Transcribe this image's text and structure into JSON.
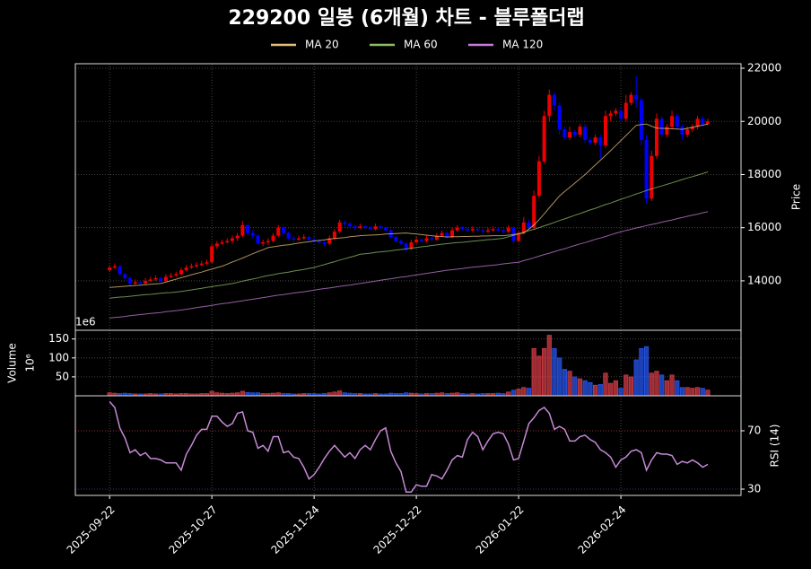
{
  "chart_data": [
    {
      "type": "candlestick",
      "title": "229200 일봉 (6개월) 차트 - 블루폴더랩",
      "ylabel": "Price",
      "up_color": "#ee0000",
      "down_color": "#0000ff",
      "grid": true,
      "xlim": [
        -6.7,
        123.5
      ],
      "ylim": [
        12140,
        22170
      ],
      "yticks": [
        14000,
        16000,
        18000,
        20000,
        22000
      ],
      "open": [
        14400,
        14500,
        14550,
        14250,
        14100,
        13900,
        13950,
        13900,
        14000,
        14050,
        14100,
        14000,
        14150,
        14200,
        14250,
        14400,
        14500,
        14550,
        14600,
        14650,
        14700,
        15300,
        15400,
        15450,
        15500,
        15600,
        15700,
        16100,
        15800,
        15700,
        15400,
        15450,
        15500,
        15700,
        16000,
        15800,
        15600,
        15550,
        15600,
        15650,
        15550,
        15500,
        15450,
        15400,
        15600,
        15850,
        16200,
        16150,
        16050,
        16000,
        16050,
        16000,
        15950,
        16050,
        16000,
        15900,
        15650,
        15500,
        15400,
        15200,
        15450,
        15550,
        15500,
        15600,
        15550,
        15700,
        15800,
        15650,
        15900,
        16000,
        15950,
        15900,
        15950,
        15900,
        15850,
        15900,
        15950,
        15900,
        15850,
        16000,
        15500,
        15800,
        16200,
        16000,
        17200,
        18500,
        20200,
        21000,
        20600,
        19700,
        19400,
        19600,
        19500,
        19800,
        19300,
        19200,
        19400,
        19100,
        20200,
        20300,
        20400,
        20100,
        20700,
        21000,
        20800,
        19300,
        17100,
        18700,
        20100,
        19500,
        19800,
        20200,
        19800,
        19500,
        19700,
        19800,
        20100,
        19900
      ],
      "high": [
        14600,
        14650,
        14600,
        14300,
        14150,
        14050,
        14000,
        14100,
        14150,
        14200,
        14150,
        14250,
        14300,
        14350,
        14500,
        14600,
        14650,
        14700,
        14750,
        14800,
        15400,
        15500,
        15550,
        15600,
        15700,
        15800,
        16250,
        16150,
        15900,
        15750,
        15550,
        15600,
        15800,
        16100,
        16050,
        15850,
        15700,
        15700,
        15750,
        15700,
        15650,
        15550,
        15500,
        15700,
        15950,
        16300,
        16250,
        16200,
        16100,
        16150,
        16100,
        16050,
        16150,
        16100,
        16050,
        15950,
        15700,
        15550,
        15450,
        15550,
        15650,
        15600,
        15700,
        15650,
        15800,
        15900,
        15850,
        16000,
        16100,
        16050,
        16000,
        16050,
        16000,
        15950,
        16000,
        16050,
        16000,
        15950,
        16100,
        16050,
        15900,
        16400,
        16300,
        17400,
        18700,
        20400,
        21200,
        21100,
        20700,
        19800,
        19800,
        19700,
        19900,
        19900,
        19400,
        19500,
        19500,
        20400,
        20400,
        20500,
        20500,
        21000,
        21100,
        21700,
        20900,
        19500,
        18900,
        20300,
        20200,
        19900,
        20400,
        20300,
        19900,
        19800,
        19900,
        20200,
        20200,
        20100
      ],
      "low": [
        14350,
        14450,
        14200,
        14050,
        13800,
        13850,
        13850,
        13850,
        13950,
        14000,
        13950,
        13950,
        14100,
        14150,
        14200,
        14350,
        14450,
        14500,
        14550,
        14600,
        14650,
        15200,
        15350,
        15400,
        15400,
        15500,
        15650,
        15700,
        15600,
        15350,
        15300,
        15350,
        15450,
        15650,
        15700,
        15550,
        15450,
        15500,
        15550,
        15500,
        15450,
        15400,
        15300,
        15350,
        15550,
        15800,
        16050,
        16000,
        15900,
        15950,
        15950,
        15900,
        15900,
        15950,
        15850,
        15600,
        15450,
        15350,
        15100,
        15150,
        15400,
        15450,
        15450,
        15500,
        15500,
        15650,
        15600,
        15600,
        15850,
        15900,
        15850,
        15850,
        15850,
        15800,
        15800,
        15850,
        15850,
        15800,
        15800,
        15400,
        15450,
        15750,
        15950,
        15950,
        17100,
        18400,
        20000,
        20400,
        19500,
        19300,
        19300,
        19400,
        19400,
        19200,
        19100,
        19100,
        18600,
        19000,
        20000,
        20200,
        20000,
        20000,
        20600,
        20500,
        19100,
        16900,
        17000,
        18600,
        19400,
        19400,
        19700,
        19700,
        19300,
        19400,
        19600,
        19700,
        19800,
        19850
      ],
      "close": [
        14500,
        14550,
        14250,
        14100,
        13900,
        13950,
        13900,
        14000,
        14050,
        14100,
        14000,
        14150,
        14200,
        14250,
        14400,
        14500,
        14550,
        14600,
        14650,
        14700,
        15300,
        15400,
        15450,
        15500,
        15600,
        15700,
        16100,
        15800,
        15700,
        15400,
        15450,
        15500,
        15700,
        16000,
        15800,
        15600,
        15550,
        15600,
        15650,
        15550,
        15500,
        15450,
        15400,
        15600,
        15850,
        16200,
        16150,
        16050,
        16000,
        16050,
        16000,
        15950,
        16050,
        16000,
        15900,
        15650,
        15500,
        15400,
        15200,
        15450,
        15550,
        15500,
        15600,
        15550,
        15700,
        15800,
        15650,
        15900,
        16000,
        15950,
        15900,
        15950,
        15900,
        15850,
        15900,
        15950,
        15900,
        15850,
        16000,
        15500,
        15800,
        16200,
        16000,
        17200,
        18500,
        20200,
        21000,
        20600,
        19700,
        19400,
        19600,
        19500,
        19800,
        19300,
        19200,
        19400,
        19100,
        20200,
        20300,
        20400,
        20100,
        20700,
        21000,
        20800,
        19300,
        17100,
        18700,
        20100,
        19500,
        19800,
        20200,
        19800,
        19500,
        19700,
        19800,
        20100,
        19900,
        20000
      ],
      "series": [
        {
          "name": "MA 20",
          "color": "#e6c27a",
          "values": [
            13750,
            13765,
            13780,
            13795,
            13810,
            13825,
            13840,
            13855,
            13870,
            13885,
            13900,
            13950,
            14010,
            14060,
            14120,
            14170,
            14230,
            14280,
            14330,
            14390,
            14440,
            14500,
            14550,
            14630,
            14710,
            14780,
            14860,
            14940,
            15020,
            15100,
            15170,
            15250,
            15280,
            15310,
            15340,
            15360,
            15390,
            15420,
            15450,
            15470,
            15500,
            15520,
            15540,
            15570,
            15590,
            15610,
            15630,
            15660,
            15680,
            15700,
            15710,
            15720,
            15730,
            15740,
            15760,
            15770,
            15780,
            15790,
            15800,
            15780,
            15760,
            15740,
            15720,
            15700,
            15680,
            15670,
            15650,
            15660,
            15660,
            15670,
            15670,
            15680,
            15680,
            15690,
            15690,
            15700,
            15700,
            15700,
            15720,
            15740,
            15770,
            15800,
            15950,
            16100,
            16300,
            16520,
            16750,
            16970,
            17200,
            17360,
            17520,
            17680,
            17840,
            18000,
            18180,
            18360,
            18540,
            18720,
            18900,
            19090,
            19280,
            19470,
            19660,
            19850,
            19880,
            19900,
            19820,
            19750,
            19740,
            19730,
            19720,
            19710,
            19700,
            19740,
            19780,
            19820,
            19860,
            19900
          ]
        },
        {
          "name": "MA 60",
          "color": "#8fbf6a",
          "values": [
            13350,
            13370,
            13390,
            13400,
            13420,
            13440,
            13460,
            13480,
            13490,
            13510,
            13530,
            13550,
            13560,
            13580,
            13600,
            13630,
            13660,
            13690,
            13720,
            13750,
            13780,
            13810,
            13840,
            13870,
            13900,
            13940,
            13990,
            14030,
            14070,
            14110,
            14160,
            14200,
            14230,
            14270,
            14300,
            14330,
            14370,
            14400,
            14430,
            14470,
            14500,
            14560,
            14610,
            14670,
            14720,
            14780,
            14830,
            14890,
            14940,
            15000,
            15020,
            15040,
            15070,
            15090,
            15110,
            15130,
            15160,
            15180,
            15200,
            15230,
            15250,
            15280,
            15300,
            15330,
            15350,
            15380,
            15400,
            15420,
            15440,
            15450,
            15470,
            15490,
            15510,
            15530,
            15550,
            15560,
            15580,
            15600,
            15660,
            15710,
            15770,
            15830,
            15890,
            15940,
            16000,
            16070,
            16130,
            16200,
            16270,
            16330,
            16400,
            16470,
            16530,
            16600,
            16670,
            16730,
            16800,
            16870,
            16930,
            17000,
            17070,
            17130,
            17200,
            17270,
            17330,
            17400,
            17460,
            17520,
            17570,
            17630,
            17690,
            17750,
            17810,
            17870,
            17920,
            17980,
            18040,
            18100
          ]
        },
        {
          "name": "MA 120",
          "color": "#c77dd9",
          "values": [
            12600,
            12620,
            12640,
            12660,
            12690,
            12710,
            12730,
            12750,
            12770,
            12790,
            12810,
            12840,
            12860,
            12880,
            12900,
            12930,
            12960,
            12990,
            13020,
            13050,
            13080,
            13110,
            13140,
            13160,
            13190,
            13220,
            13250,
            13280,
            13310,
            13340,
            13370,
            13400,
            13430,
            13460,
            13480,
            13510,
            13540,
            13570,
            13590,
            13620,
            13650,
            13680,
            13710,
            13730,
            13760,
            13790,
            13820,
            13840,
            13870,
            13900,
            13930,
            13960,
            13990,
            14020,
            14050,
            14080,
            14110,
            14140,
            14160,
            14190,
            14220,
            14250,
            14280,
            14310,
            14340,
            14370,
            14400,
            14420,
            14440,
            14460,
            14490,
            14510,
            14530,
            14550,
            14570,
            14590,
            14610,
            14640,
            14660,
            14680,
            14700,
            14760,
            14810,
            14870,
            14930,
            14990,
            15040,
            15100,
            15160,
            15210,
            15270,
            15330,
            15390,
            15440,
            15500,
            15560,
            15610,
            15670,
            15730,
            15790,
            15840,
            15900,
            15940,
            15990,
            16030,
            16080,
            16120,
            16160,
            16210,
            16250,
            16290,
            16340,
            16380,
            16430,
            16470,
            16510,
            16560,
            16600
          ]
        }
      ]
    },
    {
      "type": "bar",
      "ylabel": "Volume",
      "ylabel_unit": "10⁶",
      "offset_text": "1e6",
      "grid": true,
      "up_color": "#e0404a",
      "down_color": "#2a5cff",
      "xlim": [
        -6.7,
        123.5
      ],
      "ylim": [
        0,
        173
      ],
      "yticks": [
        50,
        100,
        150
      ],
      "values": [
        8,
        7,
        6,
        7,
        6,
        5,
        5,
        5,
        6,
        5,
        5,
        6,
        6,
        5,
        6,
        6,
        5,
        5,
        6,
        6,
        12,
        8,
        7,
        6,
        7,
        8,
        12,
        9,
        8,
        8,
        6,
        6,
        7,
        8,
        6,
        6,
        5,
        5,
        6,
        6,
        6,
        5,
        6,
        8,
        10,
        13,
        8,
        7,
        6,
        6,
        5,
        5,
        6,
        5,
        5,
        7,
        6,
        6,
        8,
        7,
        6,
        5,
        6,
        6,
        7,
        8,
        6,
        7,
        8,
        6,
        5,
        6,
        5,
        6,
        6,
        6,
        7,
        6,
        10,
        15,
        18,
        22,
        20,
        125,
        105,
        125,
        160,
        125,
        100,
        70,
        65,
        50,
        45,
        40,
        35,
        28,
        30,
        60,
        33,
        40,
        20,
        55,
        50,
        95,
        125,
        130,
        60,
        65,
        55,
        40,
        55,
        40,
        22,
        22,
        20,
        22,
        20,
        15
      ]
    },
    {
      "type": "line",
      "ylabel": "RSI (14)",
      "color": "#c48ad4",
      "grid": true,
      "xlim": [
        -6.7,
        123.5
      ],
      "ylim": [
        25.7,
        94
      ],
      "yticks": [
        30,
        70
      ],
      "reference_lines": [
        {
          "value": 70,
          "color": "#b03030"
        },
        {
          "value": 30,
          "color": "#3030b0"
        }
      ],
      "xticks": [
        {
          "value": 0,
          "label": "2025-09-22"
        },
        {
          "value": 20,
          "label": "2025-10-27"
        },
        {
          "value": 40,
          "label": "2025-11-24"
        },
        {
          "value": 60,
          "label": "2025-12-22"
        },
        {
          "value": 80,
          "label": "2026-01-22"
        },
        {
          "value": 100,
          "label": "2026-02-24"
        }
      ],
      "values": [
        90,
        86,
        72,
        65,
        55,
        57,
        53,
        55,
        51,
        51,
        50,
        48,
        48,
        48,
        43,
        54,
        60,
        67,
        71,
        71,
        80,
        80,
        76,
        73,
        75,
        82,
        83,
        70,
        69,
        58,
        60,
        56,
        66,
        66,
        55,
        56,
        52,
        51,
        45,
        37,
        40,
        45,
        51,
        56,
        60,
        56,
        52,
        55,
        51,
        57,
        60,
        57,
        64,
        70,
        72,
        56,
        48,
        42,
        28,
        28,
        33,
        32,
        32,
        40,
        39,
        37,
        43,
        50,
        53,
        52,
        64,
        69,
        66,
        57,
        63,
        68,
        69,
        68,
        61,
        50,
        51,
        63,
        75,
        79,
        84,
        86,
        82,
        71,
        73,
        71,
        63,
        63,
        66,
        67,
        64,
        62,
        57,
        55,
        52,
        45,
        50,
        52,
        56,
        57,
        55,
        43,
        50,
        55,
        54,
        54,
        53,
        47,
        49,
        48,
        50,
        48,
        45,
        47
      ]
    }
  ]
}
